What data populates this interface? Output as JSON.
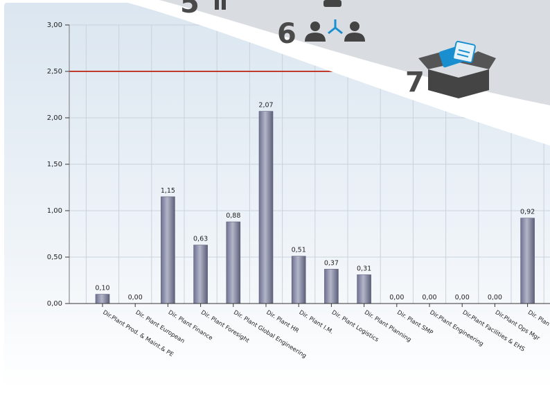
{
  "steps": [
    {
      "number": "5",
      "icon": "chair-icon"
    },
    {
      "number": "6",
      "icon": "people-network-icon"
    },
    {
      "number": "7",
      "icon": "open-box-documents-icon"
    }
  ],
  "colors": {
    "bar": "#8e91a8",
    "bar_dark": "#5c5f78",
    "threshold": "#c0392b",
    "grid": "#c9d2dc",
    "background_top": "#dfe8f1",
    "banner": "#d9dde2",
    "icon_dark": "#444444",
    "icon_accent": "#1a8fd0"
  },
  "chart_data": {
    "type": "bar",
    "categories": [
      "Dir.Plant Prod. & Maint.& PE",
      "Dir. Plant European",
      "Dir. Plant Finance",
      "Dir. Plant Foresight",
      "Dir. Plant Global Engineering",
      "Dir. Plant HR",
      "Dir. Plant I.M.",
      "Dir. Plant Logistics",
      "Dir. Plant Planning",
      "Dir. Plant SMP",
      "Dir.Plant Engineering",
      "Dir.Plant Facilities & EHS",
      "Dir.Plant Ops Mgr",
      "Dir. Plan"
    ],
    "values": [
      0.1,
      0.0,
      1.15,
      0.63,
      0.88,
      2.07,
      0.51,
      0.37,
      0.31,
      0.0,
      0.0,
      0.0,
      0.0,
      0.92
    ],
    "value_labels": [
      "0,10",
      "0,00",
      "1,15",
      "0,63",
      "0,88",
      "2,07",
      "0,51",
      "0,37",
      "0,31",
      "0,00",
      "0,00",
      "0,00",
      "0,00",
      "0,92"
    ],
    "yticks": [
      0,
      0.5,
      1.0,
      1.5,
      2.0,
      2.5,
      3.0
    ],
    "ytick_labels": [
      "0,00",
      "0,50",
      "1,00",
      "1,50",
      "2,00",
      "2,50",
      "3,00"
    ],
    "ylim": [
      0,
      3
    ],
    "threshold": 2.5,
    "grid": true,
    "title": "",
    "xlabel": "",
    "ylabel": ""
  }
}
